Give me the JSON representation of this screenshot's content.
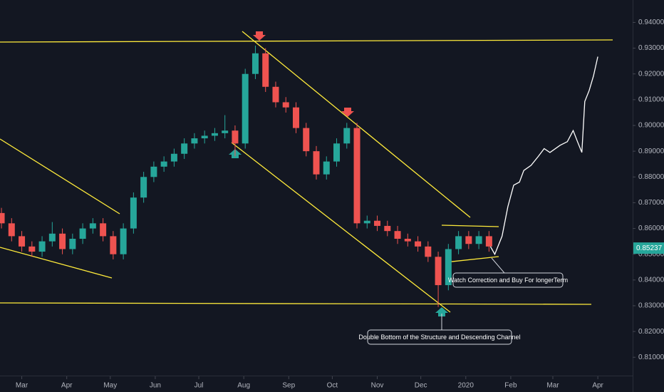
{
  "chart_data": {
    "type": "candlestick",
    "candles": {
      "x": [
        -14,
        -7,
        0,
        7,
        14,
        21,
        28,
        35,
        42,
        49,
        56,
        63,
        70,
        77,
        84,
        91,
        98,
        105,
        112,
        119,
        126,
        133,
        140,
        147,
        154,
        161,
        168,
        175,
        182,
        189,
        196,
        203,
        210,
        217,
        224,
        231,
        238,
        245,
        252,
        259,
        266,
        273,
        280,
        287,
        294,
        301,
        308,
        315,
        322
      ],
      "open": [
        0.866,
        0.862,
        0.857,
        0.853,
        0.851,
        0.855,
        0.858,
        0.852,
        0.856,
        0.86,
        0.862,
        0.857,
        0.85,
        0.86,
        0.872,
        0.88,
        0.884,
        0.886,
        0.889,
        0.893,
        0.895,
        0.896,
        0.897,
        0.898,
        0.893,
        0.92,
        0.928,
        0.915,
        0.909,
        0.907,
        0.899,
        0.89,
        0.881,
        0.886,
        0.893,
        0.899,
        0.862,
        0.863,
        0.861,
        0.859,
        0.856,
        0.855,
        0.853,
        0.849,
        0.838,
        0.852,
        0.857,
        0.854,
        0.857
      ],
      "high": [
        0.868,
        0.864,
        0.859,
        0.855,
        0.857,
        0.8625,
        0.86,
        0.858,
        0.862,
        0.864,
        0.864,
        0.859,
        0.862,
        0.874,
        0.882,
        0.886,
        0.888,
        0.891,
        0.895,
        0.897,
        0.898,
        0.899,
        0.904,
        0.9,
        0.922,
        0.931,
        0.93,
        0.917,
        0.911,
        0.909,
        0.901,
        0.892,
        0.888,
        0.895,
        0.901,
        0.901,
        0.865,
        0.865,
        0.863,
        0.861,
        0.858,
        0.857,
        0.855,
        0.851,
        0.854,
        0.859,
        0.859,
        0.859,
        0.859
      ],
      "low": [
        0.86,
        0.855,
        0.851,
        0.849,
        0.849,
        0.853,
        0.85,
        0.85,
        0.854,
        0.858,
        0.855,
        0.848,
        0.848,
        0.858,
        0.87,
        0.878,
        0.882,
        0.884,
        0.887,
        0.891,
        0.893,
        0.894,
        0.895,
        0.888,
        0.891,
        0.918,
        0.913,
        0.907,
        0.905,
        0.897,
        0.888,
        0.879,
        0.879,
        0.884,
        0.891,
        0.86,
        0.86,
        0.859,
        0.857,
        0.854,
        0.853,
        0.851,
        0.847,
        0.8295,
        0.836,
        0.85,
        0.852,
        0.852,
        0.851
      ],
      "close": [
        0.862,
        0.857,
        0.853,
        0.851,
        0.855,
        0.858,
        0.852,
        0.856,
        0.86,
        0.862,
        0.857,
        0.85,
        0.86,
        0.872,
        0.88,
        0.884,
        0.886,
        0.889,
        0.893,
        0.895,
        0.896,
        0.897,
        0.898,
        0.893,
        0.92,
        0.928,
        0.915,
        0.909,
        0.907,
        0.899,
        0.89,
        0.881,
        0.886,
        0.893,
        0.899,
        0.862,
        0.863,
        0.861,
        0.859,
        0.856,
        0.855,
        0.853,
        0.849,
        0.838,
        0.852,
        0.857,
        0.854,
        0.857,
        0.853
      ]
    },
    "up_color": "#26a69a",
    "down_color": "#ef5350",
    "projection": {
      "color": "#ffffff",
      "x": [
        323,
        326,
        331,
        335,
        339,
        343,
        346,
        351,
        356,
        360,
        364,
        371,
        376,
        380,
        383,
        386,
        388,
        391,
        394,
        397
      ],
      "y": [
        0.853,
        0.85,
        0.857,
        0.8684,
        0.8768,
        0.878,
        0.8825,
        0.8845,
        0.888,
        0.891,
        0.8895,
        0.8923,
        0.8937,
        0.898,
        0.8937,
        0.8895,
        0.9093,
        0.9135,
        0.9192,
        0.9267
      ]
    },
    "last_price": 0.85237,
    "xlim": [
      -15,
      421
    ],
    "ylim": [
      0.8026,
      0.9487
    ],
    "xticks": [
      {
        "value": 0,
        "label": "Mar"
      },
      {
        "value": 31,
        "label": "Apr"
      },
      {
        "value": 61,
        "label": "May"
      },
      {
        "value": 92,
        "label": "Jun"
      },
      {
        "value": 122,
        "label": "Jul"
      },
      {
        "value": 153,
        "label": "Aug"
      },
      {
        "value": 184,
        "label": "Sep"
      },
      {
        "value": 214,
        "label": "Oct"
      },
      {
        "value": 245,
        "label": "Nov"
      },
      {
        "value": 275,
        "label": "Dec"
      },
      {
        "value": 306,
        "label": "2020"
      },
      {
        "value": 337,
        "label": "Feb"
      },
      {
        "value": 366,
        "label": "Mar"
      },
      {
        "value": 397,
        "label": "Apr"
      }
    ],
    "yticks": [
      {
        "value": 0.81,
        "label": "0.81000"
      },
      {
        "value": 0.82,
        "label": "0.82000"
      },
      {
        "value": 0.83,
        "label": "0.83000"
      },
      {
        "value": 0.84,
        "label": "0.84000"
      },
      {
        "value": 0.85,
        "label": "0.85000"
      },
      {
        "value": 0.86,
        "label": "0.86000"
      },
      {
        "value": 0.87,
        "label": "0.87000"
      },
      {
        "value": 0.88,
        "label": "0.88000"
      },
      {
        "value": 0.89,
        "label": "0.89000"
      },
      {
        "value": 0.9,
        "label": "0.90000"
      },
      {
        "value": 0.91,
        "label": "0.91000"
      },
      {
        "value": 0.92,
        "label": "0.92000"
      },
      {
        "value": 0.93,
        "label": "0.93000"
      },
      {
        "value": 0.94,
        "label": "0.94000"
      }
    ],
    "grid": false,
    "annotations": [
      "Watch Correction and Buy For longerTerm",
      "Double Bottom of the Structure and Descending Channel"
    ]
  }
}
